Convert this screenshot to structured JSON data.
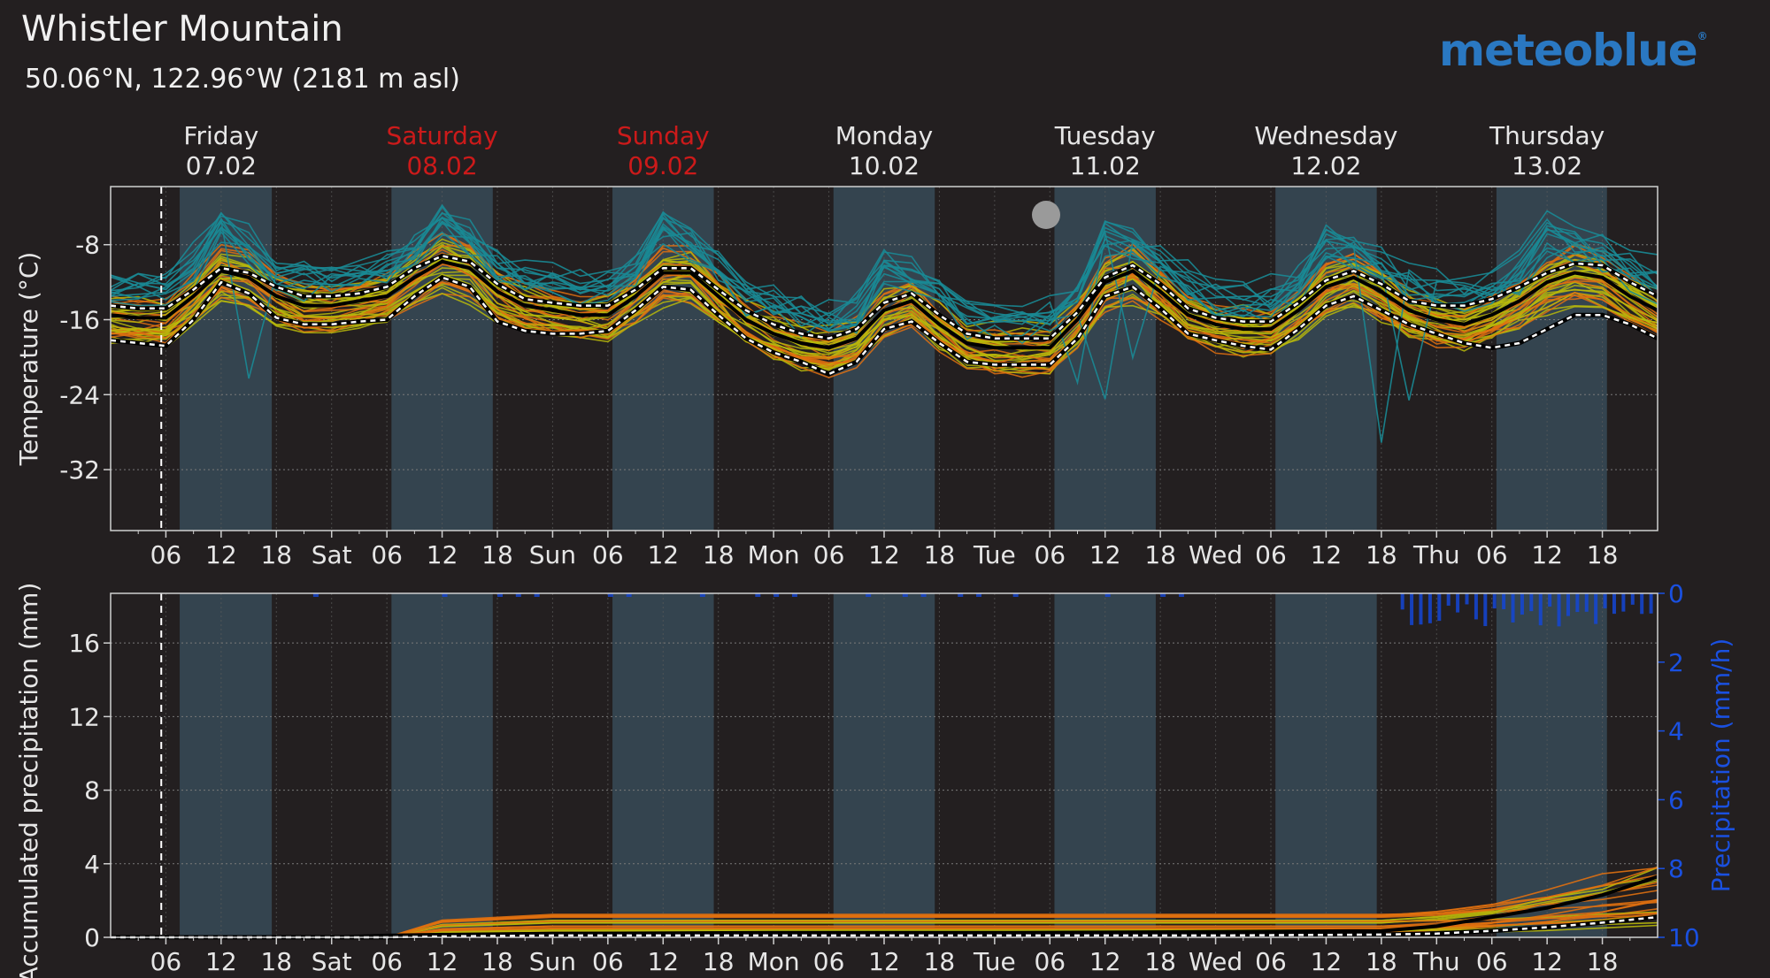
{
  "header": {
    "title": "Whistler Mountain",
    "subtitle": "50.06°N, 122.96°W (2181 m asl)",
    "logo": "meteoblue",
    "logo_mark": "®"
  },
  "days": [
    {
      "name": "Friday",
      "date": "07.02",
      "color": "#e6e6e6"
    },
    {
      "name": "Saturday",
      "date": "08.02",
      "color": "#cc1a1a"
    },
    {
      "name": "Sunday",
      "date": "09.02",
      "color": "#cc1a1a"
    },
    {
      "name": "Monday",
      "date": "10.02",
      "color": "#e6e6e6"
    },
    {
      "name": "Tuesday",
      "date": "11.02",
      "color": "#e6e6e6"
    },
    {
      "name": "Wednesday",
      "date": "12.02",
      "color": "#e6e6e6"
    },
    {
      "name": "Thursday",
      "date": "13.02",
      "color": "#e6e6e6"
    }
  ],
  "x_tick_labels": [
    "06",
    "12",
    "18",
    "Sat",
    "06",
    "12",
    "18",
    "Sun",
    "06",
    "12",
    "18",
    "Mon",
    "06",
    "12",
    "18",
    "Tue",
    "06",
    "12",
    "18",
    "Wed",
    "06",
    "12",
    "18",
    "Thu",
    "06",
    "12",
    "18"
  ],
  "colors": {
    "background": "#231f20",
    "daylight_band": "#34444f",
    "ensemble_teal": "#1a8a95",
    "ensemble_orange": "#e07010",
    "ensemble_yellow": "#b8b80a",
    "precip_bar": "#1446d6",
    "right_axis": "#1a50e0"
  },
  "chart_data": [
    {
      "type": "line",
      "ylabel": "Temperature (°C)",
      "yticks": [
        -8,
        -16,
        -24,
        -32
      ],
      "ylim": [
        -38.5,
        -1.8
      ],
      "xlim_hours": [
        0,
        168
      ],
      "now_marker_hour": 5.5,
      "daylight_hours": [
        [
          7.5,
          17.5
        ],
        [
          30.5,
          41.5
        ],
        [
          54.5,
          65.5
        ],
        [
          78.5,
          89.5
        ],
        [
          102.5,
          113.5
        ],
        [
          126.5,
          137.5
        ],
        [
          150.5,
          162.5
        ]
      ],
      "x_hours": [
        0,
        3,
        6,
        9,
        12,
        15,
        18,
        21,
        24,
        27,
        30,
        33,
        36,
        39,
        42,
        45,
        48,
        51,
        54,
        57,
        60,
        63,
        66,
        69,
        72,
        75,
        78,
        81,
        84,
        87,
        90,
        93,
        96,
        99,
        102,
        105,
        108,
        111,
        114,
        117,
        120,
        123,
        126,
        129,
        132,
        135,
        138,
        141,
        144,
        147,
        150,
        153,
        156,
        159,
        162,
        165,
        168
      ],
      "series": [
        {
          "name": "",
          "role": "median",
          "values": [
            -15.5,
            -15.8,
            -15.8,
            -13.5,
            -10.8,
            -11.5,
            -13.5,
            -14.5,
            -14.5,
            -14,
            -13.5,
            -11.5,
            -9.8,
            -10.5,
            -13,
            -14.5,
            -15,
            -15.5,
            -15.5,
            -13.5,
            -11,
            -11,
            -13.5,
            -16,
            -17.5,
            -18.5,
            -19,
            -18,
            -15,
            -14,
            -16.5,
            -18.5,
            -19,
            -19,
            -19,
            -16,
            -12,
            -10.8,
            -13,
            -15.5,
            -16.5,
            -17,
            -17,
            -15,
            -12.5,
            -11.5,
            -13,
            -15,
            -16,
            -16.5,
            -15.5,
            -14,
            -12,
            -11,
            -11.5,
            -13.5,
            -15
          ]
        },
        {
          "name": "",
          "role": "quantile-high",
          "values": [
            -14.5,
            -14.8,
            -14.8,
            -12.8,
            -10.5,
            -11,
            -12.5,
            -13.5,
            -13.5,
            -13.2,
            -12.5,
            -10.5,
            -9.2,
            -9.8,
            -12.2,
            -13.8,
            -14.2,
            -14.5,
            -14.5,
            -12.8,
            -10.5,
            -10.5,
            -12.8,
            -15,
            -16.5,
            -17.5,
            -18,
            -17,
            -14.2,
            -13.2,
            -15.5,
            -17.5,
            -18,
            -18,
            -18,
            -15.2,
            -11.5,
            -10.2,
            -12.2,
            -14.8,
            -15.8,
            -16.2,
            -16.2,
            -14.2,
            -11.8,
            -10.8,
            -12.2,
            -14,
            -14.5,
            -14.5,
            -13.8,
            -12.5,
            -11,
            -10,
            -10.2,
            -12,
            -13.5
          ]
        },
        {
          "name": "",
          "role": "quantile-low",
          "values": [
            -18.2,
            -18.5,
            -18.8,
            -16,
            -12,
            -13.2,
            -15.8,
            -16.5,
            -16.5,
            -16.2,
            -16,
            -13.5,
            -11.5,
            -12.5,
            -16.2,
            -17.2,
            -17.5,
            -17.5,
            -17.2,
            -15,
            -12.5,
            -12.8,
            -15.5,
            -18,
            -19.5,
            -20.5,
            -21.8,
            -20.5,
            -17,
            -16.2,
            -18.5,
            -20.5,
            -20.8,
            -20.8,
            -20.8,
            -18,
            -13.5,
            -12.5,
            -14.8,
            -17.5,
            -18.2,
            -18.8,
            -19.2,
            -17,
            -14.5,
            -13.5,
            -15,
            -16.5,
            -17.5,
            -18.5,
            -19,
            -18.5,
            -17,
            -15.5,
            -15.5,
            -16.5,
            -18
          ]
        }
      ]
    },
    {
      "type": "line",
      "ylabel": "Accumulated precipitation (mm)",
      "y2label": "Precipitation (mm/h)",
      "yticks": [
        0,
        4,
        8,
        12,
        16
      ],
      "ylim": [
        0,
        18.7
      ],
      "y2ticks": [
        0,
        2,
        4,
        6,
        8,
        10
      ],
      "y2lim": [
        10,
        0
      ],
      "xlim_hours": [
        0,
        168
      ],
      "now_marker_hour": 5.5,
      "x_hours": [
        0,
        24,
        30,
        36,
        48,
        72,
        96,
        120,
        138,
        144,
        150,
        156,
        162,
        168
      ],
      "series": [
        {
          "name": "",
          "role": "median",
          "values": [
            0,
            0,
            0.1,
            0.15,
            0.2,
            0.25,
            0.25,
            0.3,
            0.35,
            0.6,
            1.1,
            1.6,
            2.3,
            3.3
          ]
        },
        {
          "name": "",
          "role": "quantile-low",
          "values": [
            0,
            0,
            0,
            0.05,
            0.1,
            0.1,
            0.1,
            0.1,
            0.15,
            0.2,
            0.35,
            0.55,
            0.8,
            1.1
          ]
        }
      ]
    }
  ]
}
